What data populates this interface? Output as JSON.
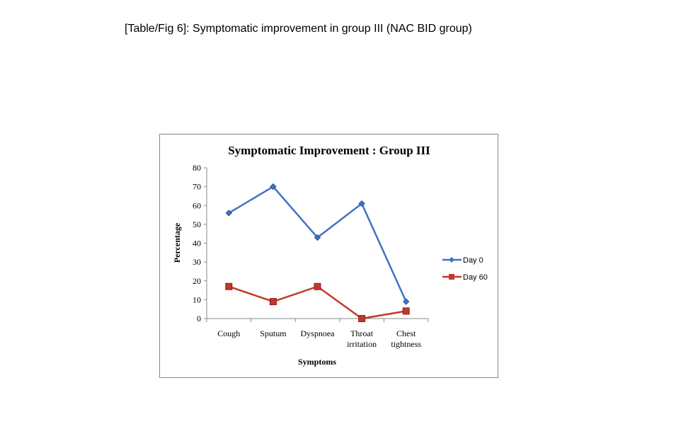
{
  "figure_title": "[Table/Fig 6]: Symptomatic improvement in group III (NAC BID group)",
  "chart_data": {
    "type": "line",
    "title": "Symptomatic Improvement :  Group III",
    "xlabel": "Symptoms",
    "ylabel": "Percentage",
    "categories": [
      [
        "Cough"
      ],
      [
        "Sputum"
      ],
      [
        "Dyspnoea"
      ],
      [
        "Throat",
        "irritation"
      ],
      [
        "Chest",
        "tightness"
      ]
    ],
    "ylim": [
      0,
      80
    ],
    "yticks": [
      0,
      10,
      20,
      30,
      40,
      50,
      60,
      70,
      80
    ],
    "legend_position": "right",
    "series": [
      {
        "name": "Day 0",
        "values": [
          56,
          70,
          43,
          61,
          9
        ],
        "color": "#4472C4",
        "marker": "diamond"
      },
      {
        "name": "Day 60",
        "values": [
          17,
          9,
          17,
          0,
          4
        ],
        "color": "#C0392B",
        "marker": "square"
      }
    ]
  }
}
